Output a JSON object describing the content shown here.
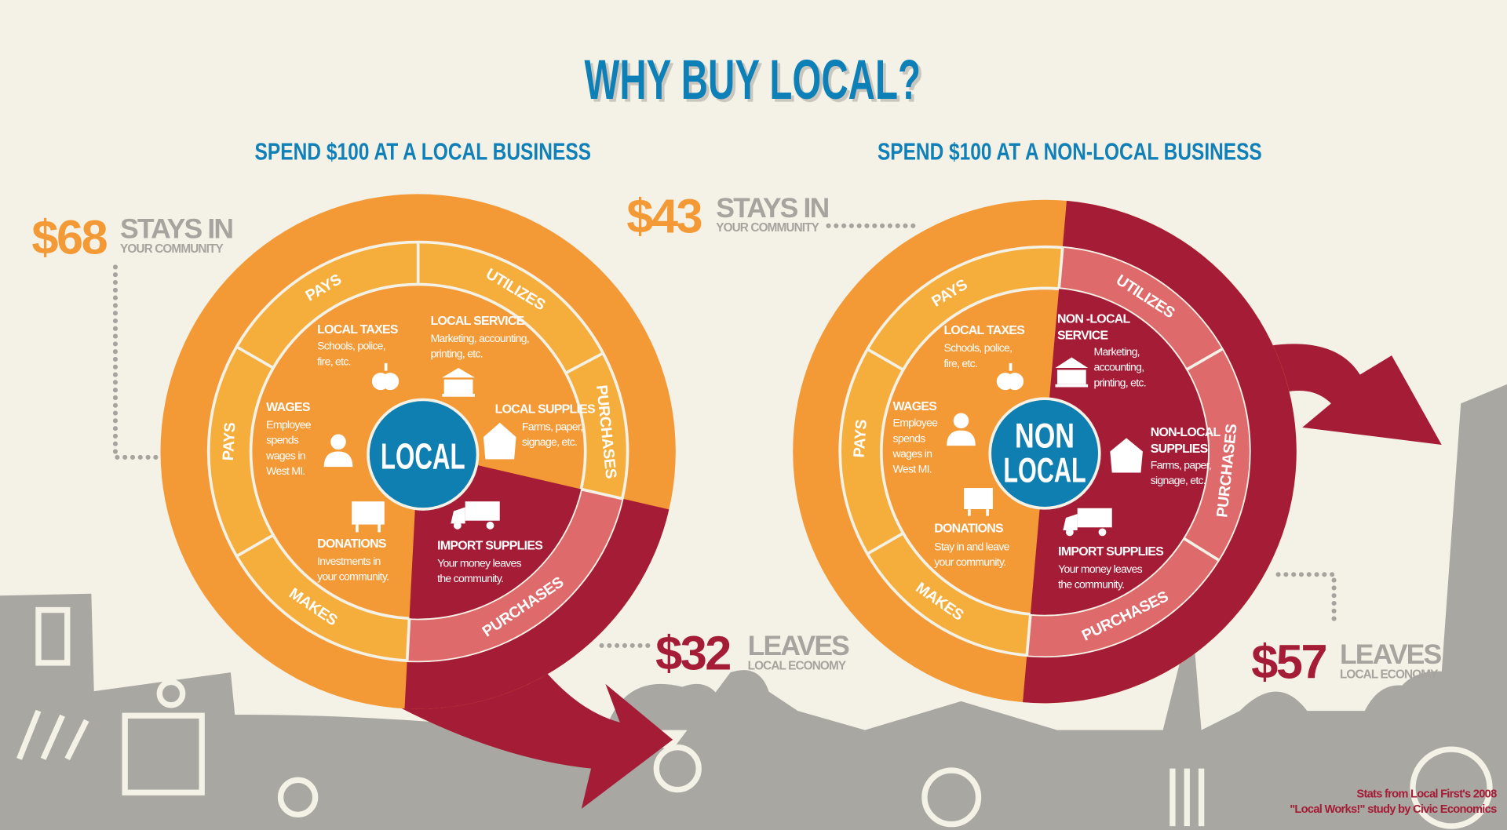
{
  "title": "WHY BUY LOCAL?",
  "colors": {
    "blue": "#1080b8",
    "orange": "#f39a37",
    "ring_orange": "#f5ae3c",
    "red": "#a51c36",
    "pink": "#df6a6b",
    "grey": "#a9a7a2",
    "background": "#f4f1e6"
  },
  "local": {
    "heading": "SPEND $100 AT A LOCAL BUSINESS",
    "center": "LOCAL",
    "stays": {
      "amount": "$68",
      "label": "STAYS IN",
      "sub": "YOUR COMMUNITY"
    },
    "leaves": {
      "amount": "$32",
      "label": "LEAVES",
      "sub": "LOCAL ECONOMY"
    },
    "ring_labels": [
      "PAYS",
      "UTILIZES",
      "PURCHASES",
      "PURCHASES",
      "MAKES",
      "PAYS"
    ],
    "items": [
      {
        "title": "LOCAL TAXES",
        "lines": [
          "Schools, police,",
          "fire, etc."
        ],
        "icon": "apple-icon"
      },
      {
        "title": "LOCAL SERVICE",
        "lines": [
          "Marketing, accounting,",
          "printing, etc."
        ],
        "icon": "bank-icon"
      },
      {
        "title": "LOCAL SUPPLIES",
        "lines": [
          "Farms, paper,",
          "signage, etc."
        ],
        "icon": "barn-icon"
      },
      {
        "title": "WAGES",
        "lines": [
          "Employee",
          "spends",
          "wages in",
          "West MI."
        ],
        "icon": "person-icon"
      },
      {
        "title": "DONATIONS",
        "lines": [
          "Investments in",
          "your community."
        ],
        "icon": "chart-board-icon"
      },
      {
        "title": "IMPORT SUPPLIES",
        "lines": [
          "Your money leaves",
          "the community."
        ],
        "icon": "truck-icon"
      }
    ]
  },
  "nonlocal": {
    "heading": "SPEND $100 AT A NON-LOCAL BUSINESS",
    "center": [
      "NON",
      "LOCAL"
    ],
    "stays": {
      "amount": "$43",
      "label": "STAYS IN",
      "sub": "YOUR COMMUNITY"
    },
    "leaves": {
      "amount": "$57",
      "label": "LEAVES",
      "sub": "LOCAL ECONOMY"
    },
    "ring_labels": [
      "PAYS",
      "UTILIZES",
      "PURCHASES",
      "PURCHASES",
      "MAKES",
      "PAYS"
    ],
    "items": [
      {
        "title": "LOCAL TAXES",
        "lines": [
          "Schools, police,",
          "fire, etc."
        ],
        "icon": "apple-icon"
      },
      {
        "title": [
          "NON -LOCAL",
          "SERVICE"
        ],
        "lines": [
          "Marketing,",
          "accounting,",
          "printing, etc."
        ],
        "icon": "bank-icon"
      },
      {
        "title": [
          "NON-LOCAL",
          "SUPPLIES"
        ],
        "lines": [
          "Farms, paper,",
          "signage, etc."
        ],
        "icon": "barn-icon"
      },
      {
        "title": "WAGES",
        "lines": [
          "Employee",
          "spends",
          "wages in",
          "West MI."
        ],
        "icon": "person-icon"
      },
      {
        "title": "DONATIONS",
        "lines": [
          "Stay in and leave",
          "your community."
        ],
        "icon": "chart-board-icon"
      },
      {
        "title": "IMPORT SUPPLIES",
        "lines": [
          "Your money leaves",
          "the community."
        ],
        "icon": "truck-icon"
      }
    ]
  },
  "source": [
    "Stats from Local First's 2008",
    "\"Local Works!\" study by Civic Economics"
  ]
}
